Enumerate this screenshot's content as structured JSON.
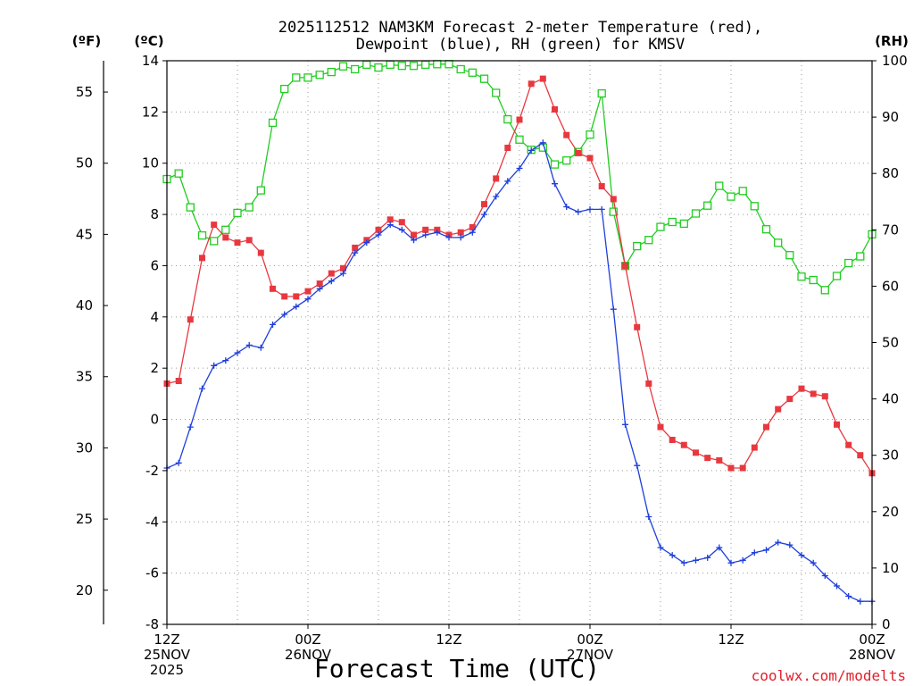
{
  "title": {
    "line1": "2025112512 NAM3KM Forecast 2-meter Temperature (red),",
    "line2": "Dewpoint (blue), RH (green) for KMSV"
  },
  "units": {
    "f": "(ºF)",
    "c": "(ºC)",
    "rh": "(RH)"
  },
  "x_axis": {
    "label": "Forecast Time (UTC)",
    "ticks": [
      {
        "hour": 0,
        "lines": [
          "12Z",
          "25NOV",
          "2025"
        ]
      },
      {
        "hour": 12,
        "lines": [
          "00Z",
          "26NOV"
        ]
      },
      {
        "hour": 24,
        "lines": [
          "12Z"
        ]
      },
      {
        "hour": 36,
        "lines": [
          "00Z",
          "27NOV"
        ]
      },
      {
        "hour": 48,
        "lines": [
          "12Z"
        ]
      },
      {
        "hour": 60,
        "lines": [
          "00Z",
          "28NOV"
        ]
      }
    ]
  },
  "credit": "coolwx.com/modelts",
  "colors": {
    "temp": "#e8383f",
    "dew": "#1f3fdc",
    "rh": "#22cc22",
    "axis": "#000000",
    "grid": "#9a9a9a",
    "credit": "#e0202a"
  },
  "chart_data": {
    "type": "line",
    "xlabel": "Forecast Time (UTC)",
    "x_unit": "forecast hour from 2025-11-25 12Z",
    "x_range": [
      0,
      60
    ],
    "y_axes": {
      "celsius": {
        "range": [
          -8,
          14
        ],
        "ticks": [
          -8,
          -6,
          -4,
          -2,
          0,
          2,
          4,
          6,
          8,
          10,
          12,
          14
        ]
      },
      "fahrenheit": {
        "range": [
          17.6,
          57.2
        ],
        "ticks": [
          20,
          25,
          30,
          35,
          40,
          45,
          50,
          55
        ]
      },
      "rh": {
        "range": [
          0,
          100
        ],
        "ticks": [
          0,
          10,
          20,
          30,
          40,
          50,
          60,
          70,
          80,
          90,
          100
        ]
      }
    },
    "x": [
      0,
      1,
      2,
      3,
      4,
      5,
      6,
      7,
      8,
      9,
      10,
      11,
      12,
      13,
      14,
      15,
      16,
      17,
      18,
      19,
      20,
      21,
      22,
      23,
      24,
      25,
      26,
      27,
      28,
      29,
      30,
      31,
      32,
      33,
      34,
      35,
      36,
      37,
      38,
      39,
      40,
      41,
      42,
      43,
      44,
      45,
      46,
      47,
      48,
      49,
      50,
      51,
      52,
      53,
      54,
      55,
      56,
      57,
      58,
      59,
      60
    ],
    "series": [
      {
        "name": "Temperature (red)",
        "unit": "C",
        "marker": "filled-square",
        "values": [
          1.4,
          1.5,
          3.9,
          6.3,
          7.6,
          7.1,
          6.9,
          7.0,
          6.5,
          5.1,
          4.8,
          4.8,
          5.0,
          5.3,
          5.7,
          5.9,
          6.7,
          7.0,
          7.4,
          7.8,
          7.7,
          7.2,
          7.4,
          7.4,
          7.2,
          7.3,
          7.5,
          8.4,
          9.4,
          10.6,
          11.7,
          13.1,
          13.3,
          12.1,
          11.1,
          10.4,
          10.2,
          9.1,
          8.6,
          6.0,
          3.6,
          1.4,
          -0.3,
          -0.8,
          -1.0,
          -1.3,
          -1.5,
          -1.6,
          -1.9,
          -1.9,
          -1.1,
          -0.3,
          0.4,
          0.8,
          1.2,
          1.0,
          0.9,
          -0.2,
          -1.0,
          -1.4,
          -2.1
        ]
      },
      {
        "name": "Dewpoint (blue)",
        "unit": "C",
        "marker": "plus",
        "values": [
          -1.9,
          -1.7,
          -0.3,
          1.2,
          2.1,
          2.3,
          2.6,
          2.9,
          2.8,
          3.7,
          4.1,
          4.4,
          4.7,
          5.1,
          5.4,
          5.7,
          6.5,
          6.9,
          7.2,
          7.6,
          7.4,
          7.0,
          7.2,
          7.3,
          7.1,
          7.1,
          7.3,
          8.0,
          8.7,
          9.3,
          9.8,
          10.5,
          10.8,
          9.2,
          8.3,
          8.1,
          8.2,
          8.2,
          4.3,
          -0.2,
          -1.8,
          -3.8,
          -5.0,
          -5.3,
          -5.6,
          -5.5,
          -5.4,
          -5.0,
          -5.6,
          -5.5,
          -5.2,
          -5.1,
          -4.8,
          -4.9,
          -5.3,
          -5.6,
          -6.1,
          -6.5,
          -6.9,
          -7.1,
          -7.1
        ]
      },
      {
        "name": "RH (green)",
        "unit": "%",
        "marker": "open-square",
        "values": [
          79,
          80,
          74,
          69,
          68,
          70,
          73,
          74,
          77,
          89,
          95,
          97,
          97,
          97.5,
          98,
          99,
          98.5,
          99.3,
          98.8,
          99.3,
          99.1,
          99.1,
          99.3,
          99.4,
          99.4,
          98.5,
          97.9,
          96.8,
          94.3,
          89.6,
          86,
          84.2,
          84.6,
          81.6,
          82.3,
          83.8,
          86.9,
          94.2,
          73.2,
          63.6,
          67.1,
          68.2,
          70.5,
          71.4,
          71.1,
          72.9,
          74.3,
          77.8,
          75.9,
          76.9,
          74.2,
          70.1,
          67.7,
          65.5,
          61.7,
          61.1,
          59.3,
          61.8,
          64.1,
          65.3,
          69.2
        ]
      }
    ]
  }
}
